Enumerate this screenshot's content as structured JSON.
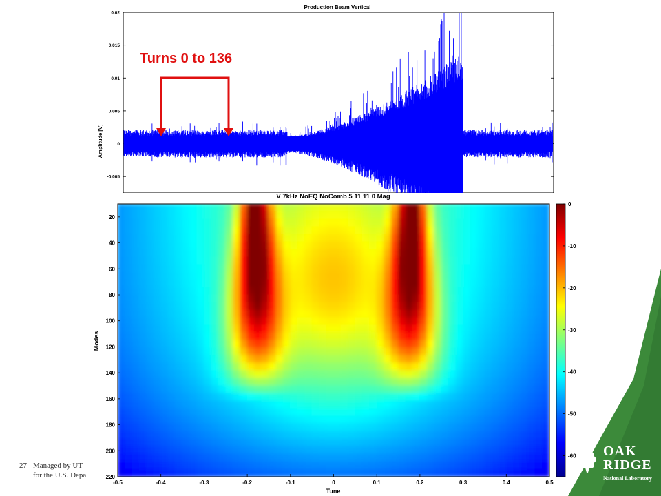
{
  "slide": {
    "page_number": "27",
    "footer_line1": "Managed by UT-",
    "footer_line2": "for the U.S. Depa",
    "logo_line1": "OAK",
    "logo_line2": "RIDGE",
    "logo_line3": "National Laboratory"
  },
  "chart_data": [
    {
      "type": "line",
      "title": "Production Beam Vertical",
      "ylabel": "Amplitude [V]",
      "xlabel": "",
      "ylim": [
        -0.0075,
        0.02
      ],
      "yticks": [
        "0.02",
        "0.015",
        "0.01",
        "0.005",
        "0",
        "-0.005"
      ],
      "grid": false,
      "annotation": "Turns 0 to 136",
      "color": "#0000ff"
    },
    {
      "type": "heatmap",
      "title": "V 7kHz NoEQ NoComb 5 11 11 0 Mag",
      "xlabel": "Tune",
      "ylabel": "Modes",
      "x_range": [
        -0.5,
        0.5
      ],
      "y_range": [
        10,
        220
      ],
      "xticks": [
        "-0.5",
        "-0.4",
        "-0.3",
        "-0.2",
        "-0.1",
        "0",
        "0.1",
        "0.2",
        "0.3",
        "0.4",
        "0.5"
      ],
      "yticks": [
        "20",
        "40",
        "60",
        "80",
        "100",
        "120",
        "140",
        "160",
        "180",
        "200",
        "220"
      ],
      "colorbar_ticks": [
        "0",
        "-10",
        "-20",
        "-30",
        "-40",
        "-50",
        "-60"
      ],
      "colorbar_range": [
        -65,
        0
      ],
      "peaks_tune": [
        -0.18,
        0.18
      ],
      "colormap": "jet"
    }
  ]
}
